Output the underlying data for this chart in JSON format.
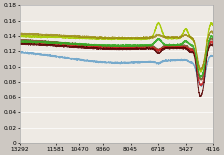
{
  "title": "",
  "x_ticks": [
    13292,
    11581,
    10470,
    9360,
    8045,
    6718,
    5427,
    4116
  ],
  "x_min": 4116,
  "x_max": 13292,
  "y_min": 0,
  "y_max": 0.18,
  "y_ticks": [
    0,
    0.02,
    0.04,
    0.06,
    0.08,
    0.1,
    0.12,
    0.14,
    0.16,
    0.18
  ],
  "background_color": "#cdc8c2",
  "plot_bg_color": "#eeeae4",
  "grid_color": "#ffffff",
  "figsize": [
    2.24,
    1.55
  ],
  "dpi": 100
}
